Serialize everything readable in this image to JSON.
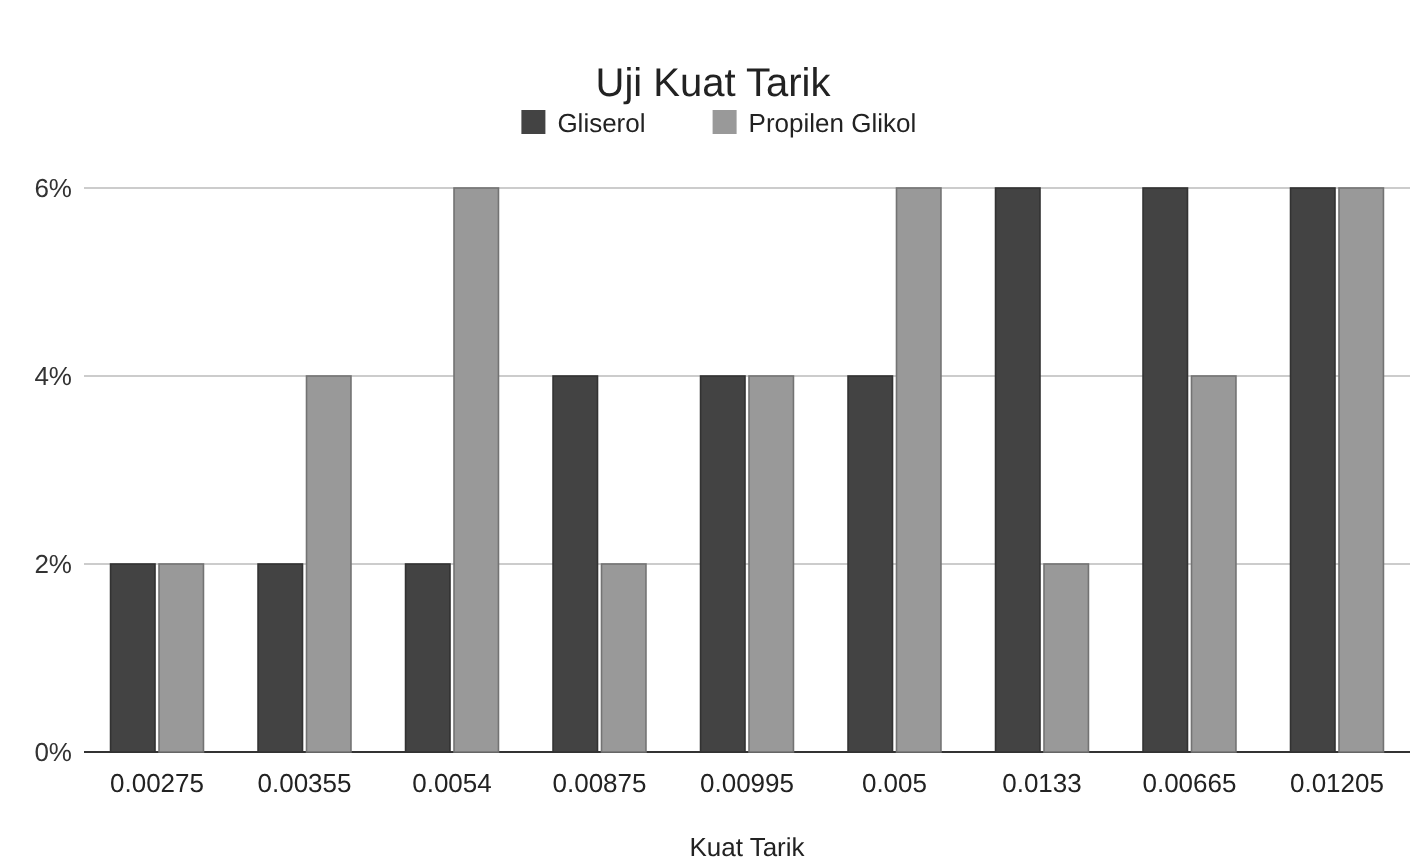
{
  "chart_data": {
    "type": "bar",
    "title": "Uji Kuat Tarik",
    "xlabel": "Kuat Tarik",
    "categories": [
      "0.00275",
      "0.00355",
      "0.0054",
      "0.00875",
      "0.00995",
      "0.005",
      "0.0133",
      "0.00665",
      "0.01205"
    ],
    "series": [
      {
        "name": "Gliserol",
        "color": "#434343",
        "values": [
          2,
          2,
          2,
          4,
          4,
          4,
          6,
          6,
          6
        ]
      },
      {
        "name": "Propilen Glikol",
        "color": "#999999",
        "values": [
          2,
          4,
          6,
          2,
          4,
          6,
          2,
          4,
          6
        ]
      }
    ],
    "ylim": [
      0,
      6
    ],
    "yticks": [
      {
        "value": 0,
        "label": "0%"
      },
      {
        "value": 2,
        "label": "2%"
      },
      {
        "value": 4,
        "label": "4%"
      },
      {
        "value": 6,
        "label": "6%"
      }
    ],
    "grid": "y",
    "legend": "top"
  }
}
